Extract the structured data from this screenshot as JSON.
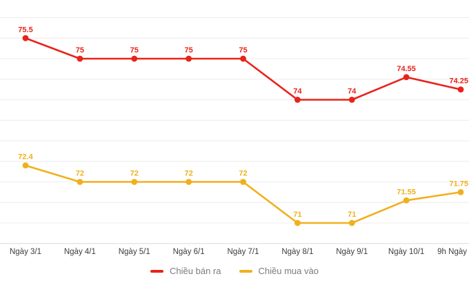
{
  "chart_data": {
    "type": "line",
    "categories": [
      "Ngày 3/1",
      "Ngày 4/1",
      "Ngày 5/1",
      "Ngày 6/1",
      "Ngày 7/1",
      "Ngày 8/1",
      "Ngày 9/1",
      "Ngày 10/1",
      "9h Ngày"
    ],
    "series": [
      {
        "name": "Chiều bán ra",
        "color": "#e8231a",
        "values": [
          75.5,
          75,
          75,
          75,
          75,
          74,
          74,
          74.55,
          74.25
        ]
      },
      {
        "name": "Chiều mua vào",
        "color": "#f0b01c",
        "values": [
          72.4,
          72,
          72,
          72,
          72,
          71,
          71,
          71.55,
          71.75
        ]
      }
    ],
    "title": "",
    "xlabel": "",
    "ylabel": "",
    "ylim": [
      70.5,
      76
    ],
    "grid": true,
    "grid_step": 0.5,
    "legend_position": "bottom",
    "point_labels_visible": true
  },
  "colors": {
    "background": "#ffffff",
    "gridline": "#ececec",
    "axis_line": "#d8d8d8",
    "x_label_text": "#3d3d3d",
    "legend_text": "#7b7b7b"
  }
}
